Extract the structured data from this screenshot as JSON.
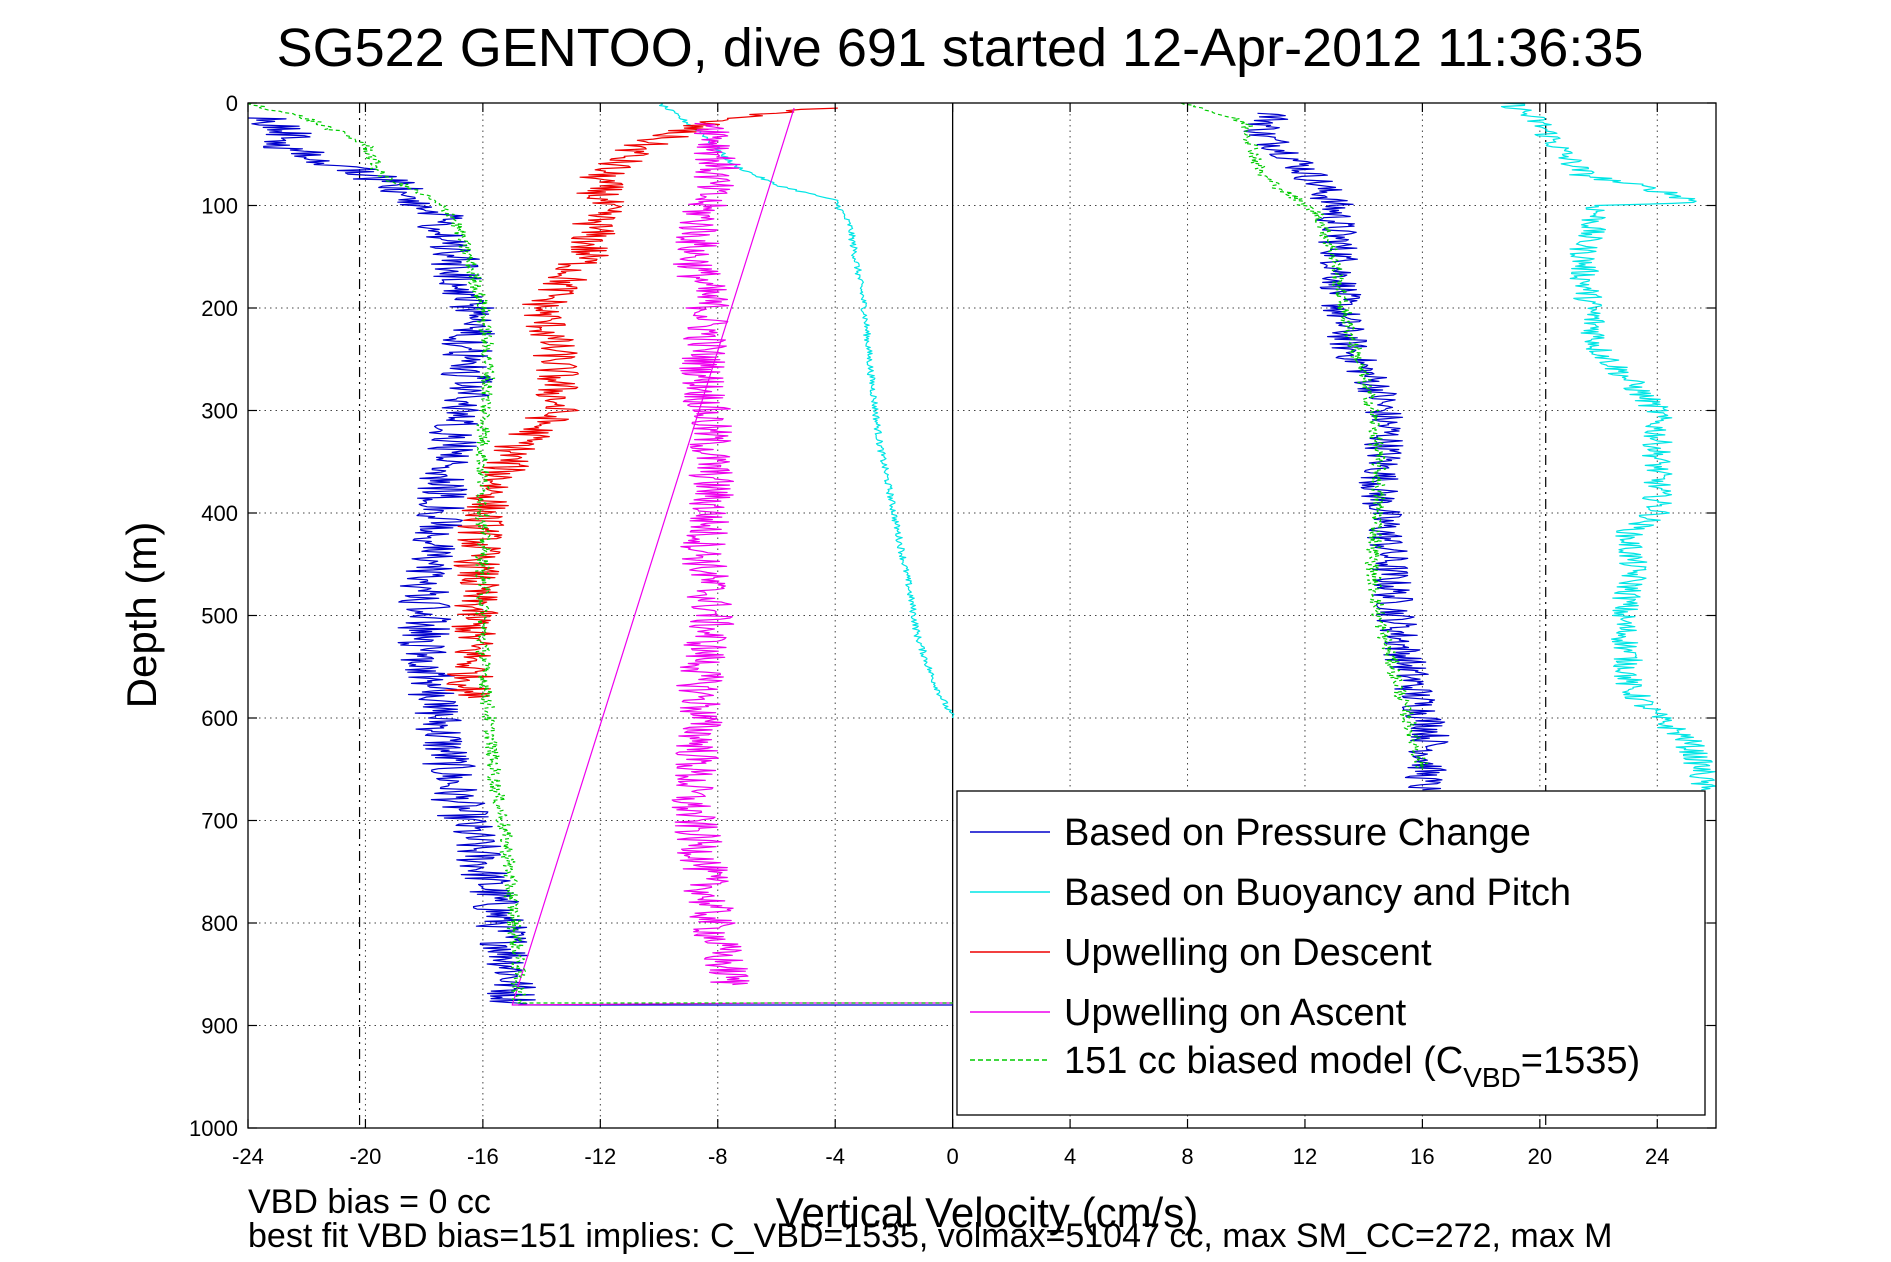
{
  "chart_data": {
    "type": "line",
    "title": "SG522 GENTOO, dive 691 started 12-Apr-2012 11:36:35",
    "xlabel": "Vertical Velocity (cm/s)",
    "ylabel": "Depth (m)",
    "xlim": [
      -24,
      26
    ],
    "ylim": [
      0,
      1000
    ],
    "y_reversed": true,
    "grid": true,
    "legend_position": "bottom-right",
    "x_ticks": [
      "-24",
      "-20",
      "-16",
      "-12",
      "-8",
      "-4",
      "0",
      "4",
      "8",
      "12",
      "16",
      "20",
      "24"
    ],
    "y_ticks": [
      "0",
      "100",
      "200",
      "300",
      "400",
      "500",
      "600",
      "700",
      "800",
      "900",
      "1000"
    ],
    "vbd_reference_lines": [
      -20.2,
      20.2
    ],
    "series": [
      {
        "name": "Based on Pressure Change",
        "color": "#0000cc",
        "style": "solid",
        "noise": 0.9,
        "points": [
          [
            -24,
            12
          ],
          [
            -22.5,
            25
          ],
          [
            -23,
            40
          ],
          [
            -21,
            60
          ],
          [
            -19,
            80
          ],
          [
            -17.5,
            110
          ],
          [
            -17,
            150
          ],
          [
            -16.5,
            200
          ],
          [
            -16.5,
            260
          ],
          [
            -17,
            330
          ],
          [
            -17.5,
            400
          ],
          [
            -18,
            470
          ],
          [
            -18,
            530
          ],
          [
            -17.5,
            600
          ],
          [
            -17,
            670
          ],
          [
            -16.2,
            730
          ],
          [
            -15.5,
            790
          ],
          [
            -15,
            840
          ],
          [
            -15,
            870
          ],
          [
            -14.8,
            880
          ],
          [
            -10,
            880
          ],
          [
            -6,
            880
          ],
          [
            0,
            880
          ]
        ]
      },
      {
        "name": "Based on Pressure Change",
        "color": "#0000cc",
        "style": "solid",
        "noise": 0.7,
        "points": [
          [
            11,
            10
          ],
          [
            10.5,
            30
          ],
          [
            11.5,
            50
          ],
          [
            12.5,
            80
          ],
          [
            13,
            100
          ],
          [
            13.2,
            150
          ],
          [
            13.2,
            200
          ],
          [
            13.5,
            240
          ],
          [
            14.5,
            280
          ],
          [
            14.8,
            320
          ],
          [
            14.5,
            380
          ],
          [
            14.8,
            430
          ],
          [
            15,
            480
          ],
          [
            15.3,
            530
          ],
          [
            15.8,
            580
          ],
          [
            16.3,
            610
          ],
          [
            16.2,
            640
          ],
          [
            16,
            670
          ]
        ]
      },
      {
        "name": "Based on Buoyancy and Pitch",
        "color": "#00e5e5",
        "style": "solid",
        "noise": 0.12,
        "points": [
          [
            -10,
            0
          ],
          [
            -8.5,
            30
          ],
          [
            -7.5,
            60
          ],
          [
            -6,
            80
          ],
          [
            -4,
            95
          ],
          [
            -3.5,
            120
          ],
          [
            -3,
            200
          ],
          [
            -2.8,
            260
          ],
          [
            -2.5,
            330
          ],
          [
            -2,
            400
          ],
          [
            -1.5,
            470
          ],
          [
            -1.2,
            520
          ],
          [
            -0.7,
            560
          ],
          [
            -0.2,
            590
          ],
          [
            0,
            600
          ]
        ]
      },
      {
        "name": "Based on Buoyancy and Pitch",
        "color": "#00e5e5",
        "style": "solid",
        "noise": 0.5,
        "points": [
          [
            19,
            0
          ],
          [
            20,
            20
          ],
          [
            20.8,
            50
          ],
          [
            21.5,
            70
          ],
          [
            24,
            85
          ],
          [
            25.5,
            97
          ],
          [
            22,
            100
          ],
          [
            21.8,
            120
          ],
          [
            21.5,
            140
          ],
          [
            21.5,
            170
          ],
          [
            21.8,
            210
          ],
          [
            22,
            240
          ],
          [
            23,
            270
          ],
          [
            24,
            300
          ],
          [
            24,
            350
          ],
          [
            24,
            400
          ],
          [
            23,
            420
          ],
          [
            23.2,
            460
          ],
          [
            22.8,
            500
          ],
          [
            23,
            540
          ],
          [
            23,
            570
          ],
          [
            24,
            600
          ],
          [
            25,
            620
          ],
          [
            25.5,
            650
          ],
          [
            25.5,
            670
          ]
        ]
      },
      {
        "name": "Upwelling on Descent",
        "color": "#ee0000",
        "style": "solid",
        "noise": 0.8,
        "points": [
          [
            -4,
            5
          ],
          [
            -8,
            15
          ],
          [
            -10.5,
            40
          ],
          [
            -12,
            70
          ],
          [
            -12,
            100
          ],
          [
            -12.5,
            150
          ],
          [
            -14,
            200
          ],
          [
            -13.5,
            250
          ],
          [
            -13.5,
            300
          ],
          [
            -15,
            340
          ],
          [
            -16,
            400
          ],
          [
            -16.2,
            450
          ],
          [
            -16.3,
            500
          ],
          [
            -16.4,
            550
          ],
          [
            -16.5,
            580
          ]
        ]
      },
      {
        "name": "Upwelling on Ascent",
        "color": "#ee00ee",
        "style": "solid",
        "noise": 0.8,
        "points": [
          [
            -8,
            20
          ],
          [
            -8,
            60
          ],
          [
            -8.5,
            100
          ],
          [
            -8.8,
            150
          ],
          [
            -8.3,
            200
          ],
          [
            -8.5,
            260
          ],
          [
            -8.3,
            320
          ],
          [
            -8.2,
            380
          ],
          [
            -8.5,
            440
          ],
          [
            -8.2,
            500
          ],
          [
            -8.6,
            560
          ],
          [
            -8.6,
            620
          ],
          [
            -9,
            680
          ],
          [
            -8.5,
            740
          ],
          [
            -8.2,
            800
          ],
          [
            -7.8,
            840
          ],
          [
            -7.5,
            860
          ]
        ]
      },
      {
        "name": "Upwelling on Ascent",
        "color": "#ee00ee",
        "style": "solid",
        "noise": 0,
        "points": [
          [
            -5.4,
            5
          ],
          [
            -15,
            880
          ],
          [
            -6,
            878
          ],
          [
            0,
            878
          ]
        ]
      },
      {
        "name": "151 cc biased model (C_VBD=1535)",
        "color": "#00cc00",
        "style": "dashed",
        "noise": 0.25,
        "points": [
          [
            -24,
            0
          ],
          [
            -22,
            15
          ],
          [
            -20,
            40
          ],
          [
            -19.5,
            70
          ],
          [
            -18,
            90
          ],
          [
            -17,
            110
          ],
          [
            -16.5,
            150
          ],
          [
            -16,
            200
          ],
          [
            -15.8,
            260
          ],
          [
            -16,
            330
          ],
          [
            -16,
            400
          ],
          [
            -16,
            470
          ],
          [
            -16,
            540
          ],
          [
            -15.8,
            600
          ],
          [
            -15.6,
            660
          ],
          [
            -15.2,
            720
          ],
          [
            -15,
            780
          ],
          [
            -14.8,
            840
          ],
          [
            -14.8,
            878
          ],
          [
            -10,
            878
          ],
          [
            0,
            878
          ]
        ]
      },
      {
        "name": "151 cc biased model (C_VBD=1535)",
        "color": "#00cc00",
        "style": "dashed",
        "noise": 0.25,
        "points": [
          [
            8,
            0
          ],
          [
            10,
            20
          ],
          [
            10.3,
            50
          ],
          [
            10.5,
            70
          ],
          [
            11.5,
            90
          ],
          [
            12.5,
            110
          ],
          [
            13,
            150
          ],
          [
            13.3,
            200
          ],
          [
            13.8,
            250
          ],
          [
            14.3,
            300
          ],
          [
            14.5,
            350
          ],
          [
            14.5,
            400
          ],
          [
            14.3,
            450
          ],
          [
            14.5,
            500
          ],
          [
            15,
            550
          ],
          [
            15.5,
            600
          ],
          [
            16,
            650
          ]
        ]
      }
    ],
    "legend": {
      "entries": [
        {
          "label": "Based on Pressure Change",
          "color": "#0000cc",
          "style": "solid"
        },
        {
          "label": "Based on Buoyancy and Pitch",
          "color": "#00e5e5",
          "style": "solid"
        },
        {
          "label": "Upwelling on Descent",
          "color": "#ee0000",
          "style": "solid"
        },
        {
          "label": "Upwelling on Ascent",
          "color": "#ee00ee",
          "style": "solid"
        },
        {
          "label_main": "151 cc biased model (C",
          "label_sub": "VBD",
          "label_tail": "=1535)",
          "color": "#00cc00",
          "style": "dashed"
        }
      ]
    },
    "annotations": [
      "VBD bias = 0 cc",
      "best fit VBD bias=151 implies: C_VBD=1535, volmax=51047 cc, max SM_CC=272, max M"
    ]
  }
}
